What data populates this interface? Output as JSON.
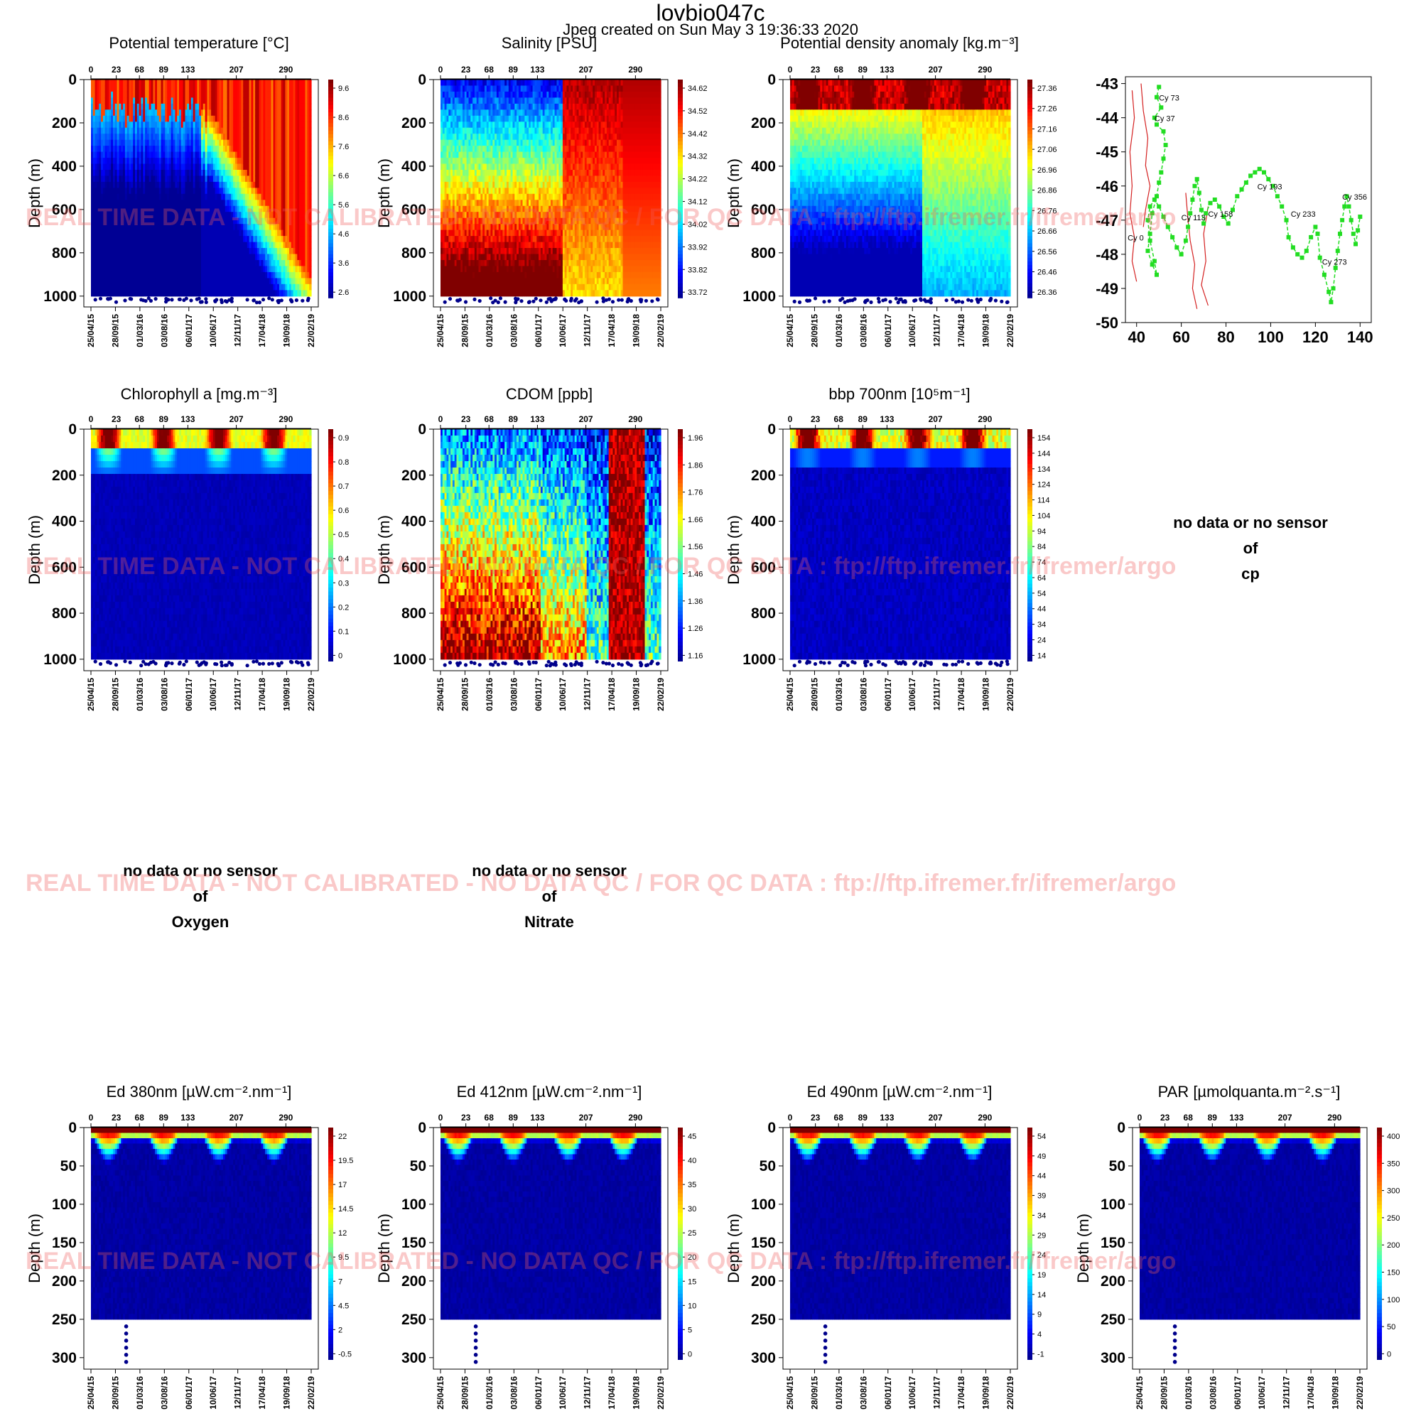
{
  "header": {
    "title": "lovbio047c",
    "subtitle": "Jpeg created on  Sun May  3 19:36:33 2020"
  },
  "watermark": "REAL TIME DATA - NOT CALIBRATED - NO DATA QC   /  FOR QC DATA : ftp://ftp.ifremer.fr/ifremer/argo",
  "common": {
    "ylabel": "Depth (m)",
    "cycle_ticks": [
      "0",
      "23",
      "68",
      "89",
      "133",
      "207",
      "290"
    ],
    "date_ticks": [
      "25/04/15",
      "28/09/15",
      "01/03/16",
      "03/08/16",
      "06/01/17",
      "10/06/17",
      "12/11/17",
      "17/04/18",
      "19/09/18",
      "22/02/19"
    ]
  },
  "no_data": {
    "line1": "no data or no sensor",
    "line2": "of",
    "cp": "cp",
    "oxygen": "Oxygen",
    "nitrate": "Nitrate"
  },
  "chart_data": [
    {
      "id": "potential-temperature",
      "type": "heatmap",
      "title": "Potential temperature [°C]",
      "ylabel": "Depth (m)",
      "ylim": [
        1050,
        0
      ],
      "y_ticks": [
        0,
        200,
        400,
        600,
        800,
        1000
      ],
      "colorbar_ticks": [
        "9.6",
        "8.6",
        "7.6",
        "6.6",
        "5.6",
        "4.6",
        "3.6",
        "2.6"
      ],
      "pattern": "temp"
    },
    {
      "id": "salinity",
      "type": "heatmap",
      "title": "Salinity [PSU]",
      "ylabel": "Depth (m)",
      "ylim": [
        1050,
        0
      ],
      "y_ticks": [
        0,
        200,
        400,
        600,
        800,
        1000
      ],
      "colorbar_ticks": [
        "34.62",
        "34.52",
        "34.42",
        "34.32",
        "34.22",
        "34.12",
        "34.02",
        "33.92",
        "33.82",
        "33.72"
      ],
      "pattern": "sal"
    },
    {
      "id": "potential-density-anomaly",
      "type": "heatmap",
      "title": "Potential density anomaly [kg.m⁻³]",
      "ylabel": "Depth (m)",
      "ylim": [
        1050,
        0
      ],
      "y_ticks": [
        0,
        200,
        400,
        600,
        800,
        1000
      ],
      "colorbar_ticks": [
        "27.36",
        "27.26",
        "27.16",
        "27.06",
        "26.96",
        "26.86",
        "26.76",
        "26.66",
        "26.56",
        "26.46",
        "26.36"
      ],
      "pattern": "dens"
    },
    {
      "id": "trajectory-map",
      "type": "scatter",
      "title": "",
      "xlim": [
        35,
        145
      ],
      "ylim": [
        -50,
        -42.8
      ],
      "x_ticks": [
        40,
        60,
        80,
        100,
        120,
        140
      ],
      "y_ticks": [
        -43,
        -44,
        -45,
        -46,
        -47,
        -48,
        -49,
        -50
      ],
      "track": {
        "x": [
          50,
          49,
          51,
          48,
          49,
          52,
          53,
          52,
          51,
          50,
          49,
          47,
          46,
          45,
          47,
          49,
          48,
          46,
          45,
          46,
          48,
          50,
          52,
          54,
          56,
          58,
          60,
          62,
          63,
          64,
          65,
          66,
          67,
          68,
          69,
          70,
          71,
          73,
          75,
          77,
          79,
          81,
          83,
          85,
          87,
          89,
          91,
          93,
          95,
          97,
          99,
          101,
          103,
          105,
          107,
          108,
          110,
          112,
          114,
          116,
          118,
          120,
          121,
          122,
          124,
          126,
          127,
          128,
          129,
          130,
          131,
          132,
          133,
          134,
          135,
          136,
          137,
          138,
          139,
          140
        ],
        "y": [
          -43.1,
          -43.4,
          -43.7,
          -44.0,
          -44.2,
          -44.4,
          -44.8,
          -45.2,
          -45.6,
          -45.9,
          -46.3,
          -46.8,
          -47.4,
          -47.9,
          -48.3,
          -48.6,
          -48.2,
          -47.6,
          -47.0,
          -46.6,
          -46.4,
          -46.6,
          -46.9,
          -47.2,
          -47.5,
          -47.8,
          -48.0,
          -47.6,
          -47.2,
          -46.8,
          -46.4,
          -46.0,
          -45.8,
          -46.2,
          -46.7,
          -47.1,
          -46.8,
          -46.5,
          -46.4,
          -46.6,
          -46.9,
          -47.1,
          -46.7,
          -46.3,
          -46.1,
          -45.9,
          -45.7,
          -45.6,
          -45.5,
          -45.6,
          -45.8,
          -46.0,
          -46.3,
          -46.6,
          -47.0,
          -47.5,
          -47.8,
          -48.0,
          -48.1,
          -47.9,
          -47.5,
          -47.2,
          -47.4,
          -48.1,
          -48.6,
          -49.1,
          -49.4,
          -49.0,
          -48.4,
          -47.9,
          -47.4,
          -47.0,
          -46.6,
          -46.3,
          -46.6,
          -47.0,
          -47.4,
          -47.7,
          -47.3,
          -46.9
        ]
      },
      "cycle_labels": [
        {
          "label": "Cy 73",
          "x": 50,
          "y": -43.5
        },
        {
          "label": "Cy 37",
          "x": 48,
          "y": -44.1
        },
        {
          "label": "Cy 0",
          "x": 36,
          "y": -47.6
        },
        {
          "label": "Cy 113",
          "x": 60,
          "y": -47.0
        },
        {
          "label": "Cy 158",
          "x": 72,
          "y": -46.9
        },
        {
          "label": "Cy 193",
          "x": 94,
          "y": -46.1
        },
        {
          "label": "Cy 233",
          "x": 109,
          "y": -46.9
        },
        {
          "label": "Cy 273",
          "x": 123,
          "y": -48.3
        },
        {
          "label": "Cy 356",
          "x": 132,
          "y": -46.4
        }
      ]
    },
    {
      "id": "chlorophyll-a",
      "type": "heatmap",
      "title": "Chlorophyll a [mg.m⁻³]",
      "ylabel": "Depth (m)",
      "ylim": [
        1050,
        0
      ],
      "y_ticks": [
        0,
        200,
        400,
        600,
        800,
        1000
      ],
      "colorbar_ticks": [
        "0.9",
        "0.8",
        "0.7",
        "0.6",
        "0.5",
        "0.4",
        "0.3",
        "0.2",
        "0.1",
        "0"
      ],
      "pattern": "chl"
    },
    {
      "id": "cdom",
      "type": "heatmap",
      "title": "CDOM  [ppb]",
      "ylabel": "Depth (m)",
      "ylim": [
        1050,
        0
      ],
      "y_ticks": [
        0,
        200,
        400,
        600,
        800,
        1000
      ],
      "colorbar_ticks": [
        "1.96",
        "1.86",
        "1.76",
        "1.66",
        "1.56",
        "1.46",
        "1.36",
        "1.26",
        "1.16"
      ],
      "pattern": "cdom"
    },
    {
      "id": "bbp-700nm",
      "type": "heatmap",
      "title": "bbp 700nm [10⁵m⁻¹]",
      "ylabel": "Depth (m)",
      "ylim": [
        1050,
        0
      ],
      "y_ticks": [
        0,
        200,
        400,
        600,
        800,
        1000
      ],
      "colorbar_ticks": [
        "154",
        "144",
        "134",
        "124",
        "114",
        "104",
        "94",
        "84",
        "74",
        "64",
        "54",
        "44",
        "34",
        "24",
        "14"
      ],
      "pattern": "bbp"
    },
    {
      "id": "ed-380nm",
      "type": "heatmap",
      "title": "Ed 380nm [µW.cm⁻².nm⁻¹]",
      "ylabel": "Depth (m)",
      "ylim": [
        315,
        0
      ],
      "y_ticks": [
        0,
        50,
        100,
        150,
        200,
        250,
        300
      ],
      "colorbar_ticks": [
        "22",
        "19.5",
        "17",
        "14.5",
        "12",
        "9.5",
        "7",
        "4.5",
        "2",
        "-0.5"
      ],
      "pattern": "light"
    },
    {
      "id": "ed-412nm",
      "type": "heatmap",
      "title": "Ed 412nm [µW.cm⁻².nm⁻¹]",
      "ylabel": "Depth (m)",
      "ylim": [
        315,
        0
      ],
      "y_ticks": [
        0,
        50,
        100,
        150,
        200,
        250,
        300
      ],
      "colorbar_ticks": [
        "45",
        "40",
        "35",
        "30",
        "25",
        "20",
        "15",
        "10",
        "5",
        "0"
      ],
      "pattern": "light"
    },
    {
      "id": "ed-490nm",
      "type": "heatmap",
      "title": "Ed 490nm [µW.cm⁻².nm⁻¹]",
      "ylabel": "Depth (m)",
      "ylim": [
        315,
        0
      ],
      "y_ticks": [
        0,
        50,
        100,
        150,
        200,
        250,
        300
      ],
      "colorbar_ticks": [
        "54",
        "49",
        "44",
        "39",
        "34",
        "29",
        "24",
        "19",
        "14",
        "9",
        "4",
        "-1"
      ],
      "pattern": "light"
    },
    {
      "id": "par",
      "type": "heatmap",
      "title": "PAR [µmolquanta.m⁻².s⁻¹]",
      "ylabel": "Depth (m)",
      "ylim": [
        315,
        0
      ],
      "y_ticks": [
        0,
        50,
        100,
        150,
        200,
        250,
        300
      ],
      "colorbar_ticks": [
        "400",
        "350",
        "300",
        "250",
        "200",
        "150",
        "100",
        "50",
        "0"
      ],
      "pattern": "light"
    }
  ]
}
